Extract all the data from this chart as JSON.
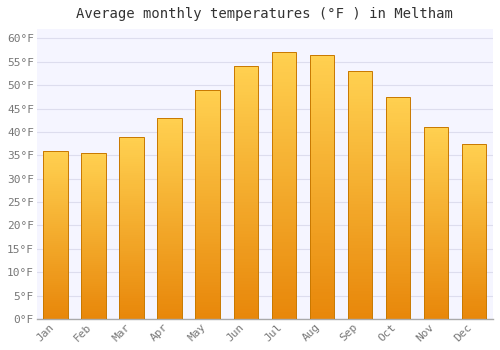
{
  "months": [
    "Jan",
    "Feb",
    "Mar",
    "Apr",
    "May",
    "Jun",
    "Jul",
    "Aug",
    "Sep",
    "Oct",
    "Nov",
    "Dec"
  ],
  "values": [
    36,
    35.5,
    39,
    43,
    49,
    54,
    57,
    56.5,
    53,
    47.5,
    41,
    37.5
  ],
  "title": "Average monthly temperatures (°F ) in Meltham",
  "ylim": [
    0,
    62
  ],
  "yticks": [
    0,
    5,
    10,
    15,
    20,
    25,
    30,
    35,
    40,
    45,
    50,
    55,
    60
  ],
  "bar_color_bottom": "#E8870A",
  "bar_color_top": "#FFD050",
  "bar_edge_color": "#C87800",
  "background_color": "#FFFFFF",
  "plot_bg_color": "#F5F5FF",
  "grid_color": "#DDDDEE",
  "title_fontsize": 10,
  "tick_fontsize": 8
}
